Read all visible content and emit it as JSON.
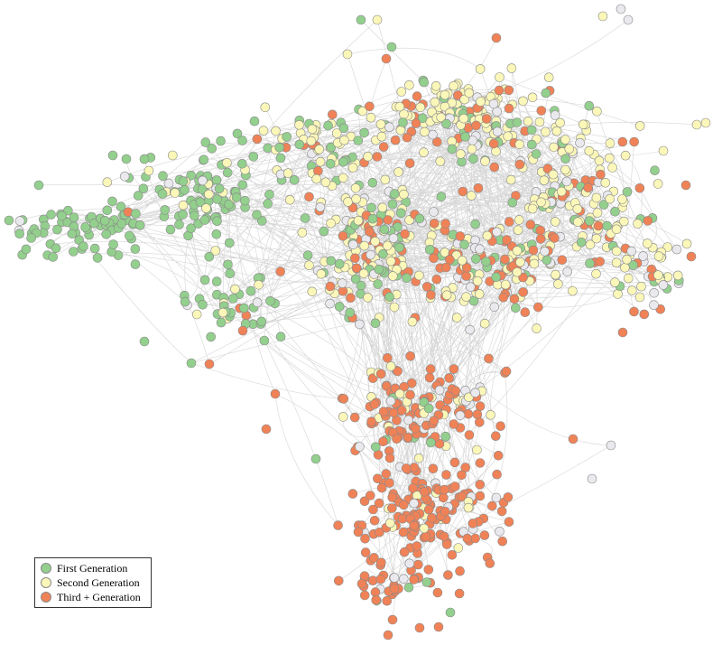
{
  "legend": {
    "items": [
      {
        "label": "First Generation",
        "color": "#93cf8d"
      },
      {
        "label": "Second Generation",
        "color": "#fbf7b9"
      },
      {
        "label": "Third + Generation",
        "color": "#f08257"
      }
    ]
  },
  "colors": {
    "first": "#93cf8d",
    "second": "#fbf7b9",
    "third": "#f08257",
    "unknown": "#e9e9ee",
    "edge": "#d6d6d6",
    "node_stroke": "#8a8a8a"
  }
}
